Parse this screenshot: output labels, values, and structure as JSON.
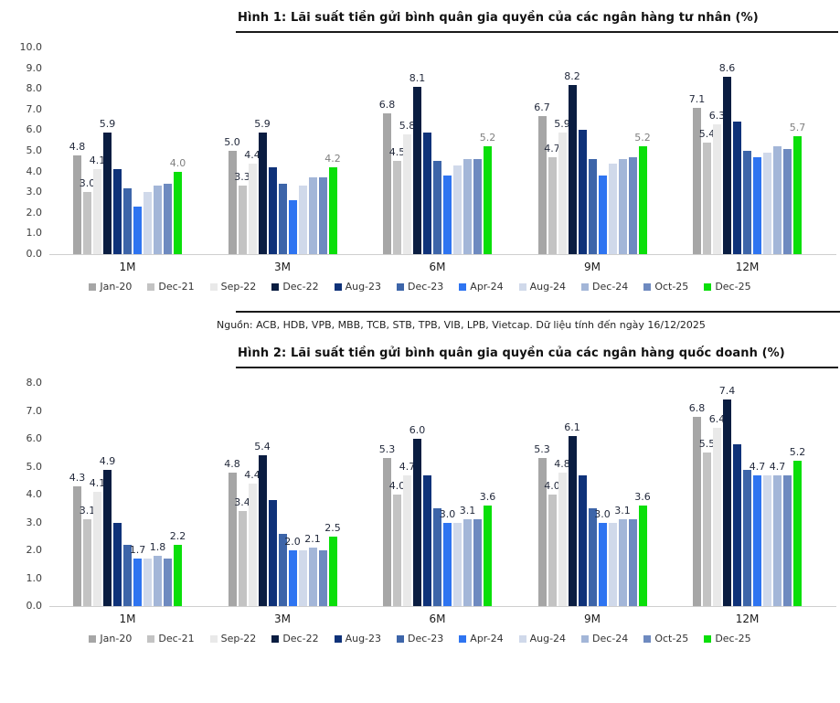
{
  "titles": {
    "figure1": "Hình 1: Lãi suất tiền gửi bình quân gia quyền của các ngân hàng tư nhân (%)",
    "figure2": "Hình 2: Lãi suất tiền gửi bình quân gia quyền của các ngân hàng quốc doanh (%)"
  },
  "source_note": "Nguồn: ACB, HDB, VPB, MBB, TCB, STB, TPB, VIB, LPB, Vietcap. Dữ liệu tính đến ngày 16/12/2025",
  "colors": {
    "accent_green": "#0adf0a",
    "navy": "#0a1d41",
    "value_label_dark": "#232a3c",
    "value_label_gray": "#7f7f7f",
    "axis_text": "#3d3d3d",
    "baseline": "#cfcfcf"
  },
  "chart_data": [
    {
      "type": "bar",
      "title": "Hình 1: Lãi suất tiền gửi bình quân gia quyền của các ngân hàng tư nhân (%)",
      "categories": [
        "1M",
        "3M",
        "6M",
        "9M",
        "12M"
      ],
      "series": [
        {
          "name": "Jan-20",
          "color": "#a6a6a6",
          "values": [
            4.8,
            5.0,
            6.8,
            6.7,
            7.1
          ]
        },
        {
          "name": "Dec-21",
          "color": "#c3c3c3",
          "values": [
            3.0,
            3.3,
            4.5,
            4.7,
            5.4
          ]
        },
        {
          "name": "Sep-22",
          "color": "#e9e9e9",
          "values": [
            4.1,
            4.4,
            5.8,
            5.9,
            6.3
          ]
        },
        {
          "name": "Dec-22",
          "color": "#0a1d41",
          "values": [
            5.9,
            5.9,
            8.1,
            8.2,
            8.6
          ]
        },
        {
          "name": "Aug-23",
          "color": "#0f3279",
          "values": [
            4.1,
            4.2,
            5.9,
            6.0,
            6.4
          ]
        },
        {
          "name": "Dec-23",
          "color": "#3d65a9",
          "values": [
            3.2,
            3.4,
            4.5,
            4.6,
            5.0
          ]
        },
        {
          "name": "Apr-24",
          "color": "#2e74f1",
          "values": [
            2.3,
            2.6,
            3.8,
            3.8,
            4.7
          ]
        },
        {
          "name": "Aug-24",
          "color": "#d0d9ea",
          "values": [
            3.0,
            3.3,
            4.3,
            4.4,
            4.9
          ]
        },
        {
          "name": "Dec-24",
          "color": "#a3b6d8",
          "values": [
            3.3,
            3.7,
            4.6,
            4.6,
            5.2
          ]
        },
        {
          "name": "Oct-25",
          "color": "#6e8ac0",
          "values": [
            3.4,
            3.7,
            4.6,
            4.7,
            5.1
          ]
        },
        {
          "name": "Dec-25",
          "color": "#0adf0a",
          "values": [
            4.0,
            4.2,
            5.2,
            5.2,
            5.7
          ],
          "label_color": "#7f7f7f"
        }
      ],
      "labeled_series": [
        0,
        1,
        2,
        3,
        10
      ],
      "value_label_color": "#232a3c",
      "ylim": [
        0,
        10
      ],
      "ytick_step": 1,
      "yticks": [
        "10.0",
        "9.0",
        "8.0",
        "7.0",
        "6.0",
        "5.0",
        "4.0",
        "3.0",
        "2.0",
        "1.0",
        "0.0"
      ],
      "grid": false,
      "legend_position": "bottom"
    },
    {
      "type": "bar",
      "title": "Hình 2: Lãi suất tiền gửi bình quân gia quyền của các ngân hàng quốc doanh (%)",
      "categories": [
        "1M",
        "3M",
        "6M",
        "9M",
        "12M"
      ],
      "series": [
        {
          "name": "Jan-20",
          "color": "#a6a6a6",
          "values": [
            4.3,
            4.8,
            5.3,
            5.3,
            6.8
          ]
        },
        {
          "name": "Dec-21",
          "color": "#c3c3c3",
          "values": [
            3.1,
            3.4,
            4.0,
            4.0,
            5.5
          ]
        },
        {
          "name": "Sep-22",
          "color": "#e9e9e9",
          "values": [
            4.1,
            4.4,
            4.7,
            4.8,
            6.4
          ]
        },
        {
          "name": "Dec-22",
          "color": "#0a1d41",
          "values": [
            4.9,
            5.4,
            6.0,
            6.1,
            7.4
          ]
        },
        {
          "name": "Aug-23",
          "color": "#0f3279",
          "values": [
            3.0,
            3.8,
            4.7,
            4.7,
            5.8
          ]
        },
        {
          "name": "Dec-23",
          "color": "#3d65a9",
          "values": [
            2.2,
            2.6,
            3.5,
            3.5,
            4.9
          ]
        },
        {
          "name": "Apr-24",
          "color": "#2e74f1",
          "values": [
            1.7,
            2.0,
            3.0,
            3.0,
            4.7
          ]
        },
        {
          "name": "Aug-24",
          "color": "#d0d9ea",
          "values": [
            1.7,
            2.0,
            3.0,
            3.0,
            4.7
          ]
        },
        {
          "name": "Dec-24",
          "color": "#a3b6d8",
          "values": [
            1.8,
            2.1,
            3.1,
            3.1,
            4.7
          ]
        },
        {
          "name": "Oct-25",
          "color": "#6e8ac0",
          "values": [
            1.7,
            2.0,
            3.1,
            3.1,
            4.7
          ]
        },
        {
          "name": "Dec-25",
          "color": "#0adf0a",
          "values": [
            2.2,
            2.5,
            3.6,
            3.6,
            5.2
          ]
        }
      ],
      "labeled_series": [
        0,
        1,
        2,
        3,
        6,
        8,
        10
      ],
      "value_label_color": "#232a3c",
      "ylim": [
        0,
        8
      ],
      "ytick_step": 1,
      "yticks": [
        "8.0",
        "7.0",
        "6.0",
        "5.0",
        "4.0",
        "3.0",
        "2.0",
        "1.0",
        "0.0"
      ],
      "grid": false,
      "legend_position": "bottom"
    }
  ]
}
